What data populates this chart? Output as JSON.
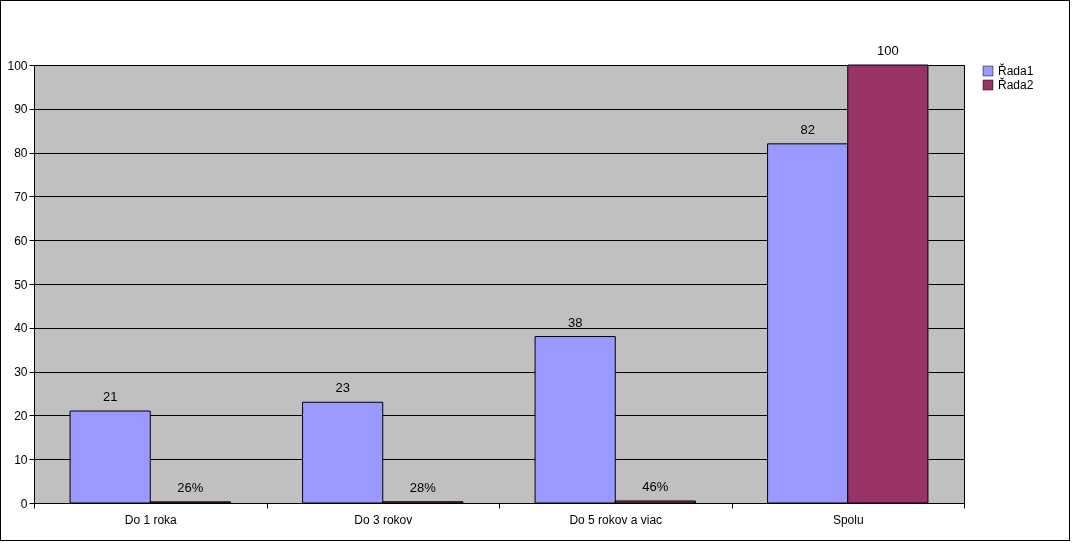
{
  "chart_data": {
    "type": "bar",
    "categories": [
      "Do 1 roka",
      "Do 3 rokov",
      "Do 5 rokov a viac",
      "Spolu"
    ],
    "series": [
      {
        "name": "Řada1",
        "color": "#9999ff",
        "values": [
          21,
          23,
          38,
          82
        ],
        "value_labels": [
          "21",
          "23",
          "38",
          "82"
        ]
      },
      {
        "name": "Řada2",
        "color": "#993366",
        "values": [
          0.26,
          0.28,
          0.46,
          100
        ],
        "value_labels": [
          "26%",
          "28%",
          "46%",
          "100"
        ]
      }
    ],
    "ylim": [
      0,
      100
    ],
    "yticks": [
      0,
      10,
      20,
      30,
      40,
      50,
      60,
      70,
      80,
      90,
      100
    ],
    "grid": "y",
    "legend": "right"
  }
}
